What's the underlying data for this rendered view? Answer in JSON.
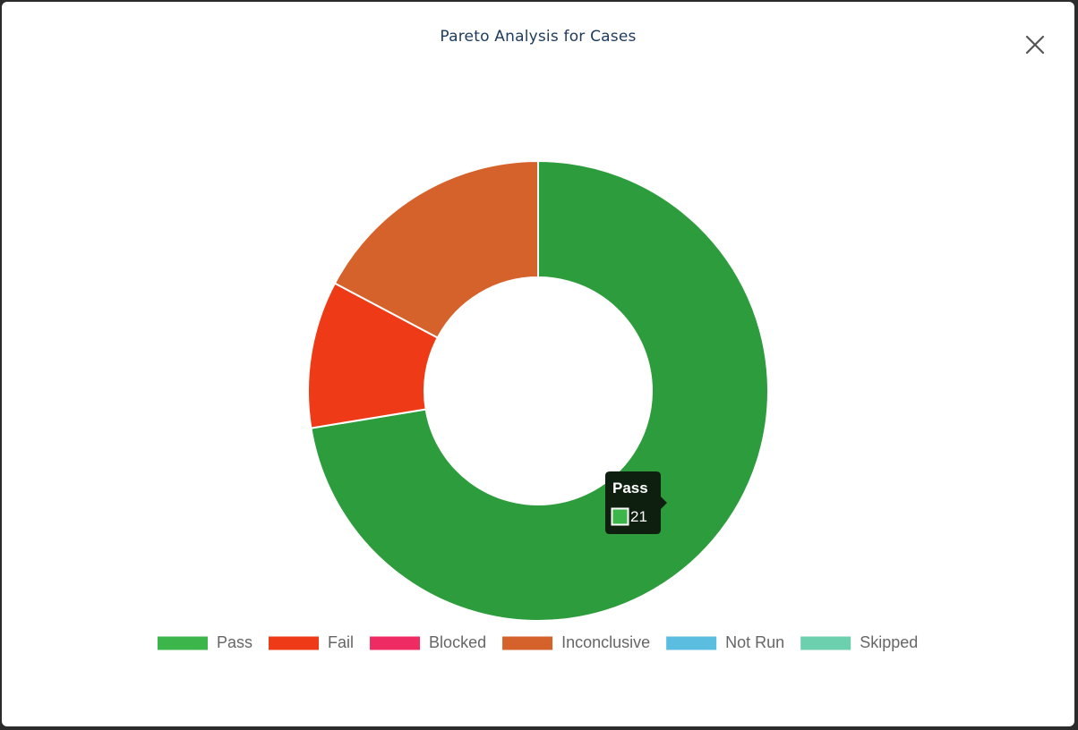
{
  "dialog": {
    "title": "Pareto Analysis for Cases",
    "close_icon": "close-icon"
  },
  "chart_data": {
    "type": "doughnut",
    "title": "Pareto Analysis for Cases",
    "legend_position": "bottom",
    "series": [
      {
        "name": "Pass",
        "value": 21,
        "color": "#2d9c3c",
        "legend_color": "#3cb54a"
      },
      {
        "name": "Fail",
        "value": 3,
        "color": "#ee3a16",
        "legend_color": "#ee3a16"
      },
      {
        "name": "Blocked",
        "value": 0,
        "color": "#ee2c63",
        "legend_color": "#ee2c63"
      },
      {
        "name": "Inconclusive",
        "value": 5,
        "color": "#d6622b",
        "legend_color": "#d6622b"
      },
      {
        "name": "Not Run",
        "value": 0,
        "color": "#5bbde0",
        "legend_color": "#5bbde0"
      },
      {
        "name": "Skipped",
        "value": 0,
        "color": "#6ccfad",
        "legend_color": "#6ccfad"
      }
    ],
    "tooltip": {
      "label": "Pass",
      "value": "21",
      "color": "#3cb54a"
    }
  }
}
